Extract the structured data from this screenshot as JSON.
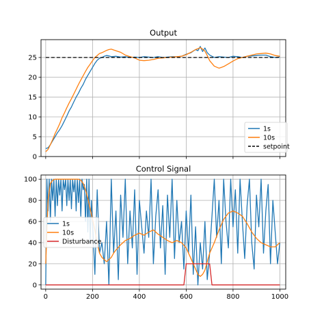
{
  "chart_data": [
    {
      "type": "line",
      "title": "Output",
      "xlabel": "",
      "ylabel": "",
      "xlim": [
        -20,
        1025
      ],
      "ylim": [
        0,
        29.5
      ],
      "xticks": [
        0,
        200,
        400,
        600,
        800,
        1000
      ],
      "yticks": [
        0,
        5,
        10,
        15,
        20,
        25
      ],
      "grid": true,
      "legend_position": "lower-right",
      "series": [
        {
          "name": "1s",
          "color": "#1f77b4",
          "x": [
            0,
            10,
            20,
            30,
            40,
            50,
            60,
            70,
            80,
            90,
            100,
            110,
            120,
            130,
            140,
            150,
            160,
            170,
            180,
            190,
            200,
            210,
            220,
            230,
            240,
            250,
            260,
            270,
            280,
            300,
            320,
            340,
            360,
            380,
            400,
            420,
            440,
            460,
            480,
            500,
            520,
            540,
            560,
            580,
            600,
            620,
            640,
            650,
            660,
            670,
            680,
            690,
            700,
            720,
            740,
            760,
            780,
            800,
            820,
            840,
            860,
            880,
            900,
            920,
            940,
            960,
            980,
            1000
          ],
          "y": [
            2.0,
            2.2,
            3.0,
            4.0,
            5.0,
            6.0,
            6.8,
            7.8,
            9.0,
            10.2,
            11.5,
            12.5,
            13.8,
            15.0,
            16.0,
            17.2,
            18.2,
            19.5,
            20.5,
            21.5,
            22.5,
            23.5,
            24.3,
            24.8,
            25.0,
            25.3,
            25.5,
            25.4,
            25.2,
            25.3,
            25.1,
            25.2,
            25.0,
            25.1,
            25.0,
            25.2,
            25.1,
            25.0,
            25.2,
            25.0,
            25.1,
            25.2,
            25.2,
            25.3,
            25.8,
            26.2,
            27.0,
            26.7,
            27.8,
            26.5,
            27.4,
            26.2,
            25.6,
            25.0,
            25.2,
            25.1,
            25.0,
            25.3,
            25.2,
            25.0,
            25.3,
            25.4,
            25.5,
            25.6,
            25.6,
            25.2,
            25.0,
            25.1
          ]
        },
        {
          "name": "10s",
          "color": "#ff7f0e",
          "x": [
            0,
            10,
            20,
            30,
            40,
            50,
            60,
            70,
            80,
            90,
            100,
            110,
            120,
            130,
            140,
            150,
            160,
            170,
            180,
            190,
            200,
            210,
            220,
            230,
            240,
            250,
            260,
            270,
            280,
            300,
            320,
            340,
            360,
            380,
            400,
            420,
            440,
            460,
            480,
            500,
            520,
            540,
            560,
            580,
            600,
            620,
            640,
            650,
            660,
            670,
            680,
            690,
            700,
            720,
            740,
            760,
            780,
            800,
            820,
            840,
            860,
            880,
            900,
            920,
            940,
            960,
            980,
            1000
          ],
          "y": [
            1.2,
            1.8,
            3.0,
            4.3,
            5.8,
            7.0,
            8.3,
            9.8,
            11.0,
            12.3,
            13.5,
            14.6,
            15.8,
            17.0,
            18.2,
            19.3,
            20.4,
            21.5,
            22.5,
            23.3,
            24.2,
            25.0,
            25.5,
            26.0,
            26.2,
            26.5,
            26.8,
            27.0,
            27.1,
            26.7,
            26.3,
            25.6,
            25.2,
            24.9,
            24.3,
            24.2,
            24.3,
            24.5,
            24.8,
            24.9,
            25.0,
            25.1,
            25.2,
            25.3,
            25.7,
            26.3,
            27.0,
            27.2,
            27.5,
            27.1,
            26.6,
            25.5,
            24.2,
            22.8,
            22.3,
            22.7,
            23.4,
            24.1,
            24.7,
            25.0,
            25.3,
            25.6,
            25.9,
            26.0,
            26.1,
            25.9,
            25.5,
            25.3
          ]
        },
        {
          "name": "setpoint",
          "color": "#000000",
          "dashed": true,
          "x": [
            0,
            1000
          ],
          "y": [
            25,
            25
          ]
        }
      ]
    },
    {
      "type": "line",
      "title": "Control Signal",
      "xlabel": "",
      "ylabel": "",
      "xlim": [
        -20,
        1025
      ],
      "ylim": [
        -4,
        104
      ],
      "xticks": [
        0,
        200,
        400,
        600,
        800,
        1000
      ],
      "yticks": [
        0,
        20,
        40,
        60,
        80,
        100
      ],
      "xtick_labels": [
        "0",
        "200",
        "400",
        "600",
        "800",
        "1000"
      ],
      "grid": true,
      "legend_position": "center-left",
      "series": [
        {
          "name": "1s",
          "color": "#1f77b4",
          "x": [
            0,
            5,
            10,
            15,
            20,
            25,
            30,
            35,
            40,
            45,
            50,
            55,
            60,
            65,
            70,
            75,
            80,
            85,
            90,
            95,
            100,
            105,
            110,
            115,
            120,
            125,
            130,
            135,
            140,
            145,
            150,
            155,
            160,
            165,
            170,
            175,
            180,
            185,
            190,
            195,
            200,
            210,
            220,
            230,
            240,
            250,
            260,
            270,
            280,
            290,
            300,
            310,
            320,
            330,
            340,
            350,
            360,
            370,
            380,
            390,
            400,
            410,
            420,
            430,
            440,
            450,
            460,
            470,
            480,
            490,
            500,
            510,
            520,
            530,
            540,
            550,
            560,
            570,
            580,
            590,
            600,
            610,
            620,
            630,
            640,
            650,
            660,
            670,
            680,
            690,
            700,
            710,
            720,
            730,
            740,
            750,
            760,
            770,
            780,
            790,
            800,
            810,
            820,
            830,
            840,
            850,
            860,
            870,
            880,
            890,
            900,
            910,
            920,
            930,
            940,
            950,
            960,
            970,
            980,
            990,
            1000
          ],
          "y": [
            0,
            100,
            70,
            100,
            60,
            100,
            80,
            100,
            65,
            100,
            75,
            100,
            85,
            100,
            70,
            100,
            90,
            100,
            75,
            100,
            80,
            100,
            72,
            100,
            88,
            100,
            70,
            100,
            78,
            100,
            65,
            100,
            90,
            95,
            60,
            100,
            50,
            100,
            40,
            80,
            60,
            10,
            90,
            30,
            40,
            20,
            60,
            0,
            100,
            30,
            70,
            5,
            85,
            45,
            100,
            20,
            70,
            35,
            90,
            10,
            80,
            55,
            30,
            70,
            45,
            100,
            20,
            65,
            90,
            35,
            75,
            10,
            85,
            45,
            100,
            25,
            80,
            40,
            60,
            15,
            70,
            30,
            85,
            10,
            55,
            0,
            40,
            15,
            60,
            5,
            30,
            65,
            100,
            45,
            80,
            20,
            100,
            60,
            35,
            100,
            55,
            90,
            30,
            100,
            60,
            25,
            75,
            100,
            40,
            15,
            85,
            55,
            100,
            30,
            70,
            95,
            20,
            80,
            50,
            20,
            40
          ]
        },
        {
          "name": "10s",
          "color": "#ff7f0e",
          "x": [
            0,
            10,
            20,
            30,
            40,
            50,
            60,
            70,
            80,
            90,
            100,
            110,
            120,
            130,
            140,
            150,
            160,
            170,
            180,
            190,
            200,
            210,
            220,
            230,
            240,
            250,
            260,
            270,
            280,
            290,
            300,
            320,
            340,
            360,
            380,
            400,
            420,
            440,
            460,
            480,
            500,
            520,
            540,
            560,
            580,
            600,
            620,
            640,
            650,
            660,
            670,
            680,
            690,
            700,
            720,
            740,
            760,
            780,
            800,
            820,
            840,
            860,
            880,
            900,
            920,
            940,
            960,
            980,
            1000
          ],
          "y": [
            20,
            80,
            96,
            99,
            100,
            100,
            100,
            100,
            100,
            100,
            100,
            100,
            100,
            100,
            100,
            99,
            96,
            90,
            82,
            72,
            62,
            52,
            40,
            30,
            26,
            24,
            22,
            24,
            26,
            30,
            33,
            38,
            42,
            44,
            47,
            49,
            47,
            50,
            52,
            48,
            45,
            42,
            40,
            42,
            40,
            35,
            25,
            15,
            10,
            8,
            10,
            14,
            22,
            30,
            40,
            52,
            62,
            68,
            70,
            68,
            65,
            58,
            50,
            44,
            40,
            38,
            36,
            36,
            40
          ]
        },
        {
          "name": "Disturbance",
          "color": "#d62728",
          "x": [
            0,
            590,
            600,
            700,
            710,
            1000
          ],
          "y": [
            0,
            0,
            20,
            20,
            0,
            0
          ]
        }
      ]
    }
  ]
}
